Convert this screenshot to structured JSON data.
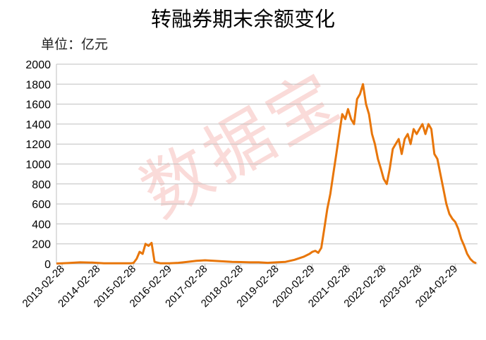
{
  "chart_data": {
    "type": "line",
    "title": "转融券期末余额变化",
    "unit_label": "单位：亿元",
    "watermark": "数据宝",
    "ylim": [
      0,
      2000
    ],
    "y_ticks": [
      "2000",
      "1800",
      "1600",
      "1400",
      "1200",
      "1000",
      "800",
      "600",
      "400",
      "200",
      "0"
    ],
    "x_ticks": [
      "2013-02-28",
      "2014-02-28",
      "2015-02-28",
      "2016-02-29",
      "2017-02-28",
      "2018-02-28",
      "2019-02-28",
      "2020-02-29",
      "2021-02-28",
      "2022-02-28",
      "2023-02-28",
      "2024-02-29"
    ],
    "grid": true,
    "line_color": "#e8760a",
    "series": [
      {
        "x": [
          "2013-01-01",
          "2013-05-01",
          "2013-09-01",
          "2014-01-01",
          "2014-05-01",
          "2014-09-01",
          "2014-12-01",
          "2015-02-01",
          "2015-03-01",
          "2015-04-01",
          "2015-05-01",
          "2015-06-01",
          "2015-07-01",
          "2015-08-01",
          "2015-09-01",
          "2015-10-01",
          "2015-12-01",
          "2016-03-01",
          "2016-06-01",
          "2016-09-01",
          "2016-12-01",
          "2017-03-01",
          "2017-06-01",
          "2017-09-01",
          "2017-12-01",
          "2018-03-01",
          "2018-06-01",
          "2018-09-01",
          "2018-12-01",
          "2019-03-01",
          "2019-06-01",
          "2019-09-01",
          "2019-12-01",
          "2020-02-01",
          "2020-03-01",
          "2020-04-01",
          "2020-05-01",
          "2020-06-01",
          "2020-07-01",
          "2020-08-01",
          "2020-09-01",
          "2020-10-01",
          "2020-11-01",
          "2020-12-01",
          "2021-01-01",
          "2021-02-01",
          "2021-03-01",
          "2021-04-01",
          "2021-05-01",
          "2021-06-01",
          "2021-07-01",
          "2021-08-01",
          "2021-09-01",
          "2021-10-01",
          "2021-11-01",
          "2021-12-01",
          "2022-01-01",
          "2022-02-01",
          "2022-03-01",
          "2022-04-01",
          "2022-05-01",
          "2022-06-01",
          "2022-07-01",
          "2022-08-01",
          "2022-09-01",
          "2022-10-01",
          "2022-11-01",
          "2022-12-01",
          "2023-01-01",
          "2023-02-01",
          "2023-03-01",
          "2023-04-01",
          "2023-05-01",
          "2023-06-01",
          "2023-07-01",
          "2023-08-01",
          "2023-09-01",
          "2023-10-01",
          "2023-11-01",
          "2023-12-01",
          "2024-01-01",
          "2024-02-01",
          "2024-03-01",
          "2024-04-01",
          "2024-05-01",
          "2024-06-01",
          "2024-07-01",
          "2024-08-01",
          "2024-09-01",
          "2024-10-01"
        ],
        "values": [
          3,
          8,
          15,
          12,
          5,
          5,
          5,
          5,
          10,
          50,
          120,
          100,
          200,
          180,
          210,
          20,
          5,
          5,
          10,
          20,
          30,
          35,
          30,
          25,
          20,
          18,
          15,
          15,
          10,
          15,
          20,
          40,
          70,
          100,
          120,
          130,
          110,
          160,
          350,
          550,
          700,
          900,
          1100,
          1300,
          1500,
          1450,
          1550,
          1450,
          1400,
          1650,
          1700,
          1800,
          1600,
          1500,
          1300,
          1200,
          1050,
          950,
          850,
          800,
          950,
          1150,
          1200,
          1250,
          1100,
          1250,
          1300,
          1200,
          1350,
          1300,
          1350,
          1400,
          1300,
          1400,
          1350,
          1100,
          1050,
          900,
          750,
          600,
          500,
          450,
          420,
          350,
          250,
          180,
          100,
          50,
          20,
          5
        ]
      }
    ]
  }
}
